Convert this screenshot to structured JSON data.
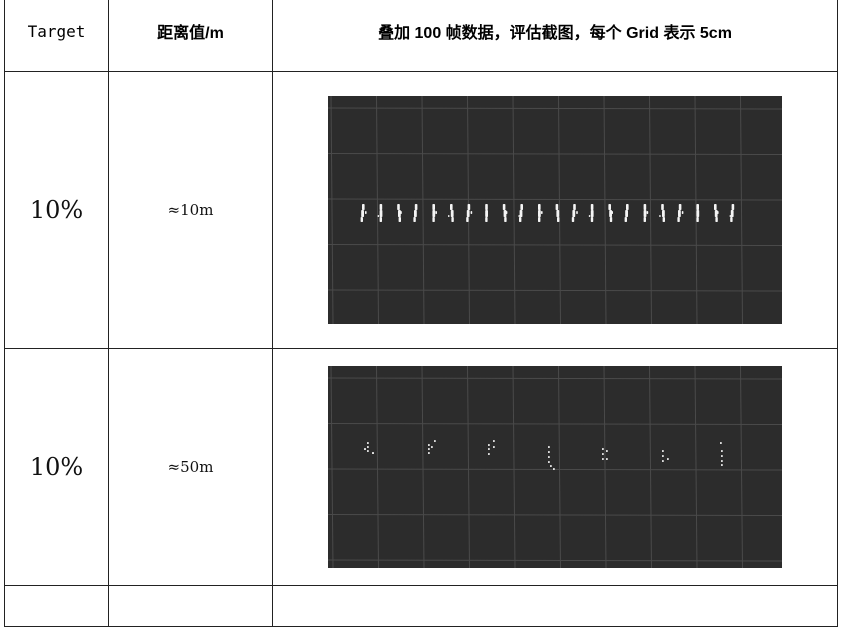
{
  "table": {
    "headers": [
      "Target",
      "距离值/m",
      "叠加 100 帧数据，评估截图，每个 Grid 表示 5cm"
    ],
    "rows": [
      {
        "target": "10%",
        "distance": "≈10m",
        "image": "point-cloud-screenshot"
      },
      {
        "target": "10%",
        "distance": "≈50m",
        "image": "point-cloud-screenshot"
      }
    ]
  },
  "colors": {
    "screenshot_bg": "#2c2c2c",
    "grid_line": "#4a4a4a",
    "points": "#f4f4f4",
    "border": "#222222"
  }
}
